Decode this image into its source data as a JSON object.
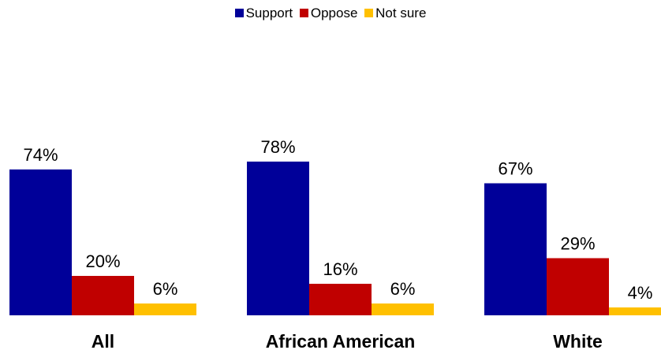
{
  "chart_data": {
    "type": "bar",
    "categories": [
      "All",
      "African American",
      "White"
    ],
    "series": [
      {
        "name": "Support",
        "color": "#000099",
        "values": [
          74,
          78,
          67
        ]
      },
      {
        "name": "Oppose",
        "color": "#C00000",
        "values": [
          20,
          16,
          29
        ]
      },
      {
        "name": "Not sure",
        "color": "#FFC000",
        "values": [
          6,
          6,
          4
        ]
      }
    ],
    "value_suffix": "%",
    "ylim": [
      0,
      100
    ],
    "legend_position": "top-center",
    "grid": false
  }
}
